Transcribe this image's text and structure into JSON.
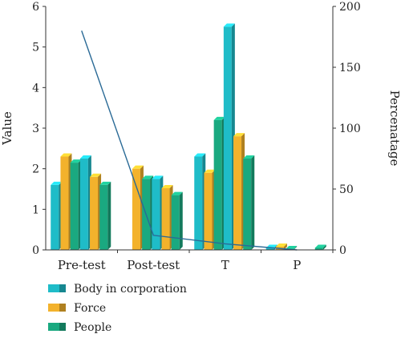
{
  "chart_data": {
    "type": "bar",
    "categories": [
      "Pre-test",
      "Post-test",
      "T",
      "P"
    ],
    "series": [
      {
        "name": "Body in corporation",
        "color": "#1fbcc8",
        "values": [
          1.6,
          0,
          2.3,
          0.05
        ]
      },
      {
        "name": "Force",
        "color": "#f3b22c",
        "values": [
          2.3,
          2.0,
          1.9,
          0.08
        ]
      },
      {
        "name": "People",
        "color": "#1aa980",
        "values": [
          2.15,
          1.75,
          3.2,
          0.02
        ]
      },
      {
        "name": "",
        "color": "#1fbcc8",
        "values": [
          2.25,
          1.75,
          5.5,
          0.0
        ]
      },
      {
        "name": "",
        "color": "#f3b22c",
        "values": [
          1.8,
          1.52,
          2.8,
          0.0
        ]
      },
      {
        "name": "",
        "color": "#1aa980",
        "values": [
          1.6,
          1.35,
          2.25,
          0.05
        ]
      }
    ],
    "line": {
      "name": "",
      "color": "#2a6a96",
      "values": [
        180,
        12,
        5,
        0
      ]
    },
    "ylabel": "Value",
    "y2label": "Percenatage",
    "ylim": [
      0,
      6
    ],
    "y2lim": [
      0,
      200
    ],
    "yticks": [
      "0",
      "1",
      "2",
      "3",
      "4",
      "5",
      "6"
    ],
    "y2ticks": [
      "0",
      "50",
      "100",
      "150",
      "200"
    ],
    "legend": [
      "Body in corporation",
      "Force",
      "People"
    ],
    "legend_placement": "bottom-left",
    "grid": false
  }
}
